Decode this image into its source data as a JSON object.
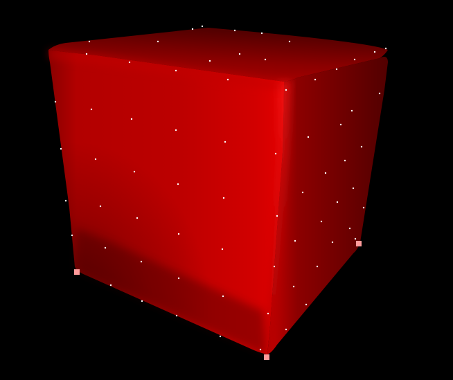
{
  "scene": {
    "background_color": "#000000",
    "object": "cube",
    "colors": {
      "front_light": "#ce0000",
      "front_mid": "#b00000",
      "front_dark": "#7a0000",
      "right_light": "#e00000",
      "right_dark": "#5a0000",
      "top_light": "#b80000",
      "top_dark": "#520000",
      "edge_highlight": "#ff1a1a",
      "vertex_points": "#ffffff",
      "corner_markers": "#ff9a9a"
    }
  }
}
